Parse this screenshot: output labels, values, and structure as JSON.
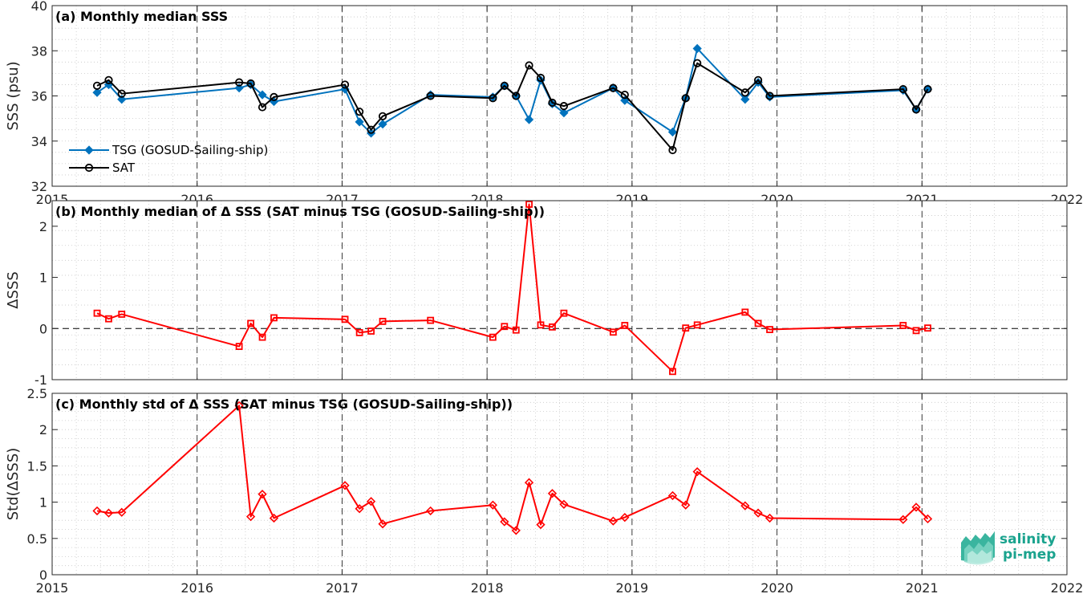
{
  "chart_data": [
    {
      "type": "line",
      "title": "(a) Monthly median SSS",
      "ylabel": "SSS (psu)",
      "ylim": [
        32,
        40
      ],
      "yticks": [
        "32",
        "34",
        "36",
        "38",
        "40"
      ],
      "xlim": [
        2015,
        2022
      ],
      "xticks": [
        "2015",
        "2016",
        "2017",
        "2018",
        "2019",
        "2020",
        "2021",
        "2022"
      ],
      "grid": "dotted",
      "legend_position": "bottom-left",
      "series": [
        {
          "name": "TSG (GOSUD-Sailing-ship)",
          "color": "#0072bd",
          "marker": "diamond",
          "x": [
            2015.31,
            2015.39,
            2015.48,
            2016.29,
            2016.37,
            2016.45,
            2016.53,
            2017.02,
            2017.12,
            2017.2,
            2017.28,
            2017.61,
            2018.04,
            2018.12,
            2018.2,
            2018.29,
            2018.37,
            2018.45,
            2018.53,
            2018.87,
            2018.95,
            2019.28,
            2019.37,
            2019.45,
            2019.78,
            2019.87,
            2019.95,
            2020.87,
            2020.96,
            2021.04
          ],
          "y": [
            36.15,
            36.5,
            35.85,
            36.35,
            36.5,
            36.05,
            35.75,
            36.3,
            34.85,
            34.35,
            34.75,
            36.05,
            35.95,
            36.45,
            36.0,
            34.95,
            36.7,
            35.65,
            35.25,
            36.35,
            35.8,
            34.4,
            35.9,
            38.1,
            35.85,
            36.6,
            35.95,
            36.25,
            35.4,
            36.3
          ]
        },
        {
          "name": "SAT",
          "color": "#000000",
          "marker": "circle",
          "x": [
            2015.31,
            2015.39,
            2015.48,
            2016.29,
            2016.37,
            2016.45,
            2016.53,
            2017.02,
            2017.12,
            2017.2,
            2017.28,
            2017.61,
            2018.04,
            2018.12,
            2018.2,
            2018.29,
            2018.37,
            2018.45,
            2018.53,
            2018.87,
            2018.95,
            2019.28,
            2019.37,
            2019.45,
            2019.78,
            2019.87,
            2019.95,
            2020.87,
            2020.96,
            2021.04
          ],
          "y": [
            36.45,
            36.7,
            36.1,
            36.6,
            36.55,
            35.5,
            35.95,
            36.5,
            35.3,
            34.5,
            35.1,
            36.0,
            35.9,
            36.45,
            36.0,
            37.35,
            36.8,
            35.7,
            35.55,
            36.35,
            36.05,
            33.6,
            35.9,
            37.45,
            36.15,
            36.7,
            36.0,
            36.3,
            35.4,
            36.3
          ]
        }
      ]
    },
    {
      "type": "line",
      "title": "(b) Monthly median of Δ SSS (SAT minus TSG (GOSUD-Sailing-ship))",
      "ylabel": "ΔSSS",
      "ylim": [
        -1,
        2.5
      ],
      "yticks": [
        "-1",
        "0",
        "1",
        "2"
      ],
      "xlim": [
        2015,
        2022
      ],
      "grid": "dotted",
      "zero_line": "dashed",
      "series": [
        {
          "color": "#ff0000",
          "marker": "square",
          "x": [
            2015.31,
            2015.39,
            2015.48,
            2016.29,
            2016.37,
            2016.45,
            2016.53,
            2017.02,
            2017.12,
            2017.2,
            2017.28,
            2017.61,
            2018.04,
            2018.12,
            2018.2,
            2018.29,
            2018.37,
            2018.45,
            2018.53,
            2018.87,
            2018.95,
            2019.28,
            2019.37,
            2019.45,
            2019.78,
            2019.87,
            2019.95,
            2020.87,
            2020.96,
            2021.04
          ],
          "y": [
            0.3,
            0.19,
            0.28,
            -0.35,
            0.1,
            -0.17,
            0.21,
            0.18,
            -0.08,
            -0.05,
            0.14,
            0.16,
            -0.17,
            0.04,
            -0.03,
            2.43,
            0.07,
            0.03,
            0.3,
            -0.07,
            0.06,
            -0.84,
            0.01,
            0.07,
            0.32,
            0.1,
            -0.02,
            0.06,
            -0.04,
            0.01
          ]
        }
      ]
    },
    {
      "type": "line",
      "title": "(c) Monthly std of Δ SSS (SAT minus TSG (GOSUD-Sailing-ship))",
      "ylabel": "Std(ΔSSS)",
      "ylim": [
        0,
        2.5
      ],
      "yticks": [
        "0",
        "0.5",
        "1",
        "1.5",
        "2",
        "2.5"
      ],
      "xlim": [
        2015,
        2022
      ],
      "xticks": [
        "2015",
        "2016",
        "2017",
        "2018",
        "2019",
        "2020",
        "2021",
        "2022"
      ],
      "grid": "dotted",
      "series": [
        {
          "color": "#ff0000",
          "marker": "diamond",
          "x": [
            2015.31,
            2015.39,
            2015.48,
            2016.29,
            2016.37,
            2016.45,
            2016.53,
            2017.02,
            2017.12,
            2017.2,
            2017.28,
            2017.61,
            2018.04,
            2018.12,
            2018.2,
            2018.29,
            2018.37,
            2018.45,
            2018.53,
            2018.87,
            2018.95,
            2019.28,
            2019.37,
            2019.45,
            2019.78,
            2019.87,
            2019.95,
            2020.87,
            2020.96,
            2021.04
          ],
          "y": [
            0.88,
            0.85,
            0.86,
            2.33,
            0.8,
            1.11,
            0.78,
            1.23,
            0.91,
            1.01,
            0.7,
            0.88,
            0.96,
            0.73,
            0.61,
            1.27,
            0.69,
            1.12,
            0.97,
            0.74,
            0.79,
            1.09,
            0.96,
            1.42,
            0.95,
            0.85,
            0.78,
            0.76,
            0.93,
            0.77
          ]
        }
      ]
    }
  ],
  "logo": {
    "line1": "salinity",
    "line2": "pi-mep"
  }
}
